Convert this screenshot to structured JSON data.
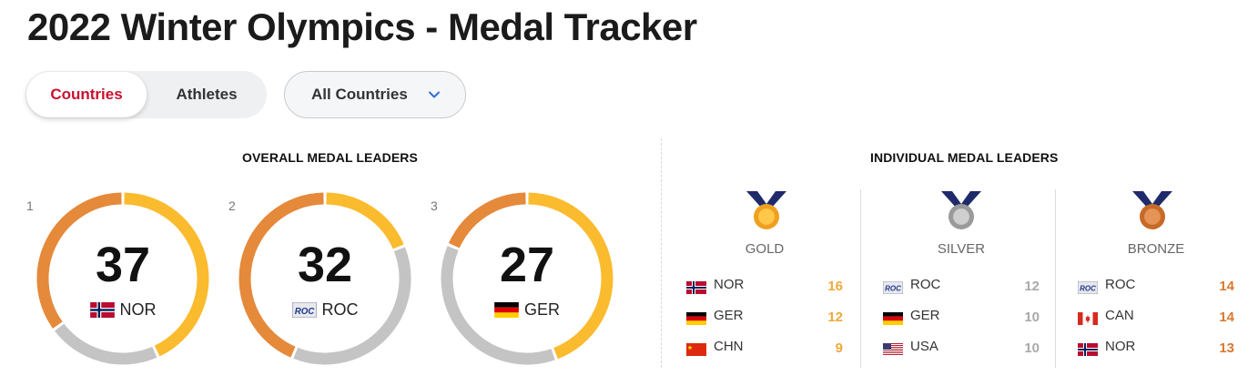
{
  "page": {
    "title": "2022 Winter Olympics - Medal Tracker"
  },
  "toggle": {
    "countries_label": "Countries",
    "athletes_label": "Athletes",
    "active": "Countries"
  },
  "filter": {
    "label": "All Countries",
    "icon": "chevron-down-icon"
  },
  "overall": {
    "title": "OVERALL MEDAL LEADERS",
    "colors": {
      "gold": "#fbbb2e",
      "silver": "#c4c4c4",
      "bronze": "#e5893a"
    },
    "leaders": [
      {
        "rank": "1",
        "total": "37",
        "code": "NOR",
        "flag": "flag-norway",
        "gold": 16,
        "silver": 8,
        "bronze": 13
      },
      {
        "rank": "2",
        "total": "32",
        "code": "ROC",
        "flag": "flag-roc",
        "gold": 6,
        "silver": 12,
        "bronze": 14
      },
      {
        "rank": "3",
        "total": "27",
        "code": "GER",
        "flag": "flag-germany",
        "gold": 12,
        "silver": 10,
        "bronze": 5
      }
    ]
  },
  "individual": {
    "title": "INDIVIDUAL MEDAL LEADERS",
    "columns": [
      {
        "label": "GOLD",
        "icon": "gold-medal-icon",
        "color": "#f0a83a",
        "rows": [
          {
            "code": "NOR",
            "flag": "flag-norway",
            "count": "16"
          },
          {
            "code": "GER",
            "flag": "flag-germany",
            "count": "12"
          },
          {
            "code": "CHN",
            "flag": "flag-china",
            "count": "9"
          }
        ]
      },
      {
        "label": "SILVER",
        "icon": "silver-medal-icon",
        "color": "#a9a9a9",
        "rows": [
          {
            "code": "ROC",
            "flag": "flag-roc",
            "count": "12"
          },
          {
            "code": "GER",
            "flag": "flag-germany",
            "count": "10"
          },
          {
            "code": "USA",
            "flag": "flag-usa",
            "count": "10"
          }
        ]
      },
      {
        "label": "BRONZE",
        "icon": "bronze-medal-icon",
        "color": "#d9782e",
        "rows": [
          {
            "code": "ROC",
            "flag": "flag-roc",
            "count": "14"
          },
          {
            "code": "CAN",
            "flag": "flag-canada",
            "count": "14"
          },
          {
            "code": "NOR",
            "flag": "flag-norway",
            "count": "13"
          }
        ]
      }
    ]
  }
}
